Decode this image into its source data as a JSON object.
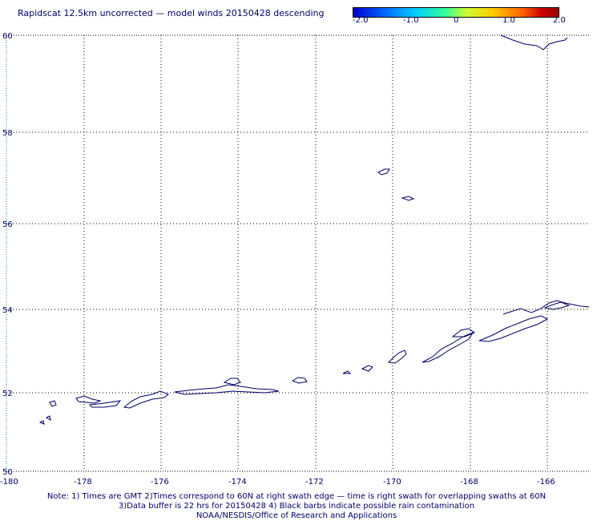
{
  "title": "Rapidscat 12.5km uncorrected — model winds 20150428 descending",
  "colorbar": {
    "labels": [
      "-2.0",
      "-1.0",
      "0",
      "1.0",
      "2.0"
    ],
    "colors": [
      "#0000cc",
      "#00aaff",
      "#33ff99",
      "#ffff00",
      "#ff7700",
      "#990000"
    ]
  },
  "axes": {
    "x_ticks": [
      "-180",
      "-178",
      "-176",
      "-174",
      "-172",
      "-170",
      "-168",
      "-166"
    ],
    "y_ticks": [
      "50",
      "52",
      "54",
      "56",
      "58",
      "60"
    ]
  },
  "notes": {
    "line1": "Note: 1) Times are GMT 2)Times correspond to 60N at right swath edge — time is right swath for overlapping swaths at 60N",
    "line2": "3)Data buffer is 22 hrs for 20150428 4) Black barbs indicate possible rain contamination",
    "line3": "NOAA/NESDIS/Office of Research and Applications"
  },
  "colors": {
    "coast": "#000066",
    "grid": "#000000",
    "lon_line_180": "#009966"
  }
}
